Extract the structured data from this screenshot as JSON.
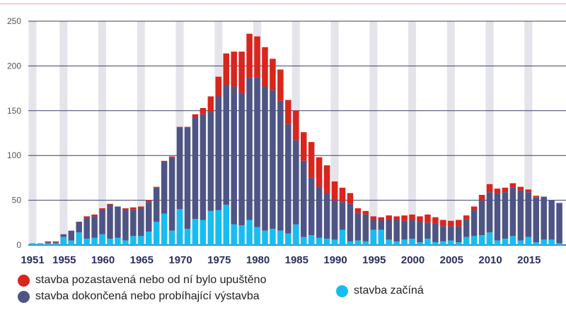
{
  "colors": {
    "suspended": "#d9251c",
    "completed": "#4e5584",
    "starting": "#16bdf2",
    "stripe": "#e4e4ea",
    "grid": "#3b3f72",
    "ticks": "#2a2f63"
  },
  "chart_data": {
    "type": "bar",
    "stacked": true,
    "title": "",
    "xlabel": "",
    "ylabel": "",
    "ylim": [
      0,
      250
    ],
    "yticks": [
      0,
      50,
      100,
      150,
      200,
      250
    ],
    "xtick_labels": [
      "1951",
      "1955",
      "1960",
      "1965",
      "1970",
      "1975",
      "1980",
      "1985",
      "1990",
      "1995",
      "2000",
      "2005",
      "2010",
      "2015"
    ],
    "grid": true,
    "legend_position": "bottom",
    "categories": [
      1951,
      1952,
      1953,
      1954,
      1955,
      1956,
      1957,
      1958,
      1959,
      1960,
      1961,
      1962,
      1963,
      1964,
      1965,
      1966,
      1967,
      1968,
      1969,
      1970,
      1971,
      1972,
      1973,
      1974,
      1975,
      1976,
      1977,
      1978,
      1979,
      1980,
      1981,
      1982,
      1983,
      1984,
      1985,
      1986,
      1987,
      1988,
      1989,
      1990,
      1991,
      1992,
      1993,
      1994,
      1995,
      1996,
      1997,
      1998,
      1999,
      2000,
      2001,
      2002,
      2003,
      2004,
      2005,
      2006,
      2007,
      2008,
      2009,
      2010,
      2011,
      2012,
      2013,
      2014,
      2015,
      2016,
      2017,
      2018,
      2019
    ],
    "series": [
      {
        "name": "stavba začíná",
        "key": "starting",
        "values": [
          2,
          2,
          2,
          2,
          9,
          5,
          14,
          7,
          8,
          12,
          7,
          8,
          5,
          10,
          10,
          15,
          26,
          35,
          16,
          40,
          18,
          29,
          28,
          38,
          39,
          45,
          23,
          22,
          28,
          20,
          16,
          18,
          16,
          13,
          23,
          9,
          11,
          8,
          7,
          6,
          17,
          4,
          5,
          4,
          17,
          17,
          6,
          4,
          6,
          7,
          3,
          7,
          3,
          4,
          5,
          3,
          9,
          10,
          11,
          14,
          5,
          7,
          10,
          5,
          9,
          3,
          6,
          6,
          2
        ]
      },
      {
        "name": "stavba dokončená nebo probíhající výstavba",
        "key": "completed",
        "values": [
          0,
          0,
          1,
          1,
          3,
          11,
          12,
          23,
          24,
          27,
          38,
          35,
          34,
          30,
          31,
          33,
          38,
          58,
          82,
          91,
          113,
          113,
          118,
          111,
          127,
          134,
          154,
          148,
          159,
          167,
          161,
          155,
          145,
          122,
          94,
          85,
          64,
          57,
          51,
          44,
          31,
          42,
          31,
          30,
          11,
          11,
          22,
          24,
          21,
          21,
          23,
          18,
          21,
          17,
          16,
          18,
          20,
          29,
          39,
          45,
          53,
          52,
          54,
          56,
          50,
          50,
          48,
          44,
          45
        ]
      },
      {
        "name": "stavba pozastavená nebo od ní bylo upuštěno",
        "key": "suspended",
        "values": [
          0,
          0,
          1,
          1,
          0,
          0,
          0,
          2,
          2,
          2,
          1,
          0,
          2,
          2,
          2,
          2,
          1,
          1,
          1,
          1,
          1,
          4,
          7,
          17,
          22,
          35,
          39,
          46,
          49,
          46,
          44,
          35,
          35,
          27,
          33,
          32,
          40,
          33,
          31,
          21,
          16,
          12,
          5,
          4,
          4,
          3,
          5,
          4,
          6,
          6,
          6,
          9,
          7,
          7,
          6,
          7,
          4,
          4,
          6,
          9,
          5,
          5,
          5,
          4,
          3,
          2,
          0,
          0,
          0
        ]
      }
    ]
  },
  "legend": {
    "suspended": "stavba pozastavená nebo od ní bylo upuštěno",
    "completed": "stavba dokončená nebo probíhající výstavba",
    "starting": "stavba začíná"
  }
}
